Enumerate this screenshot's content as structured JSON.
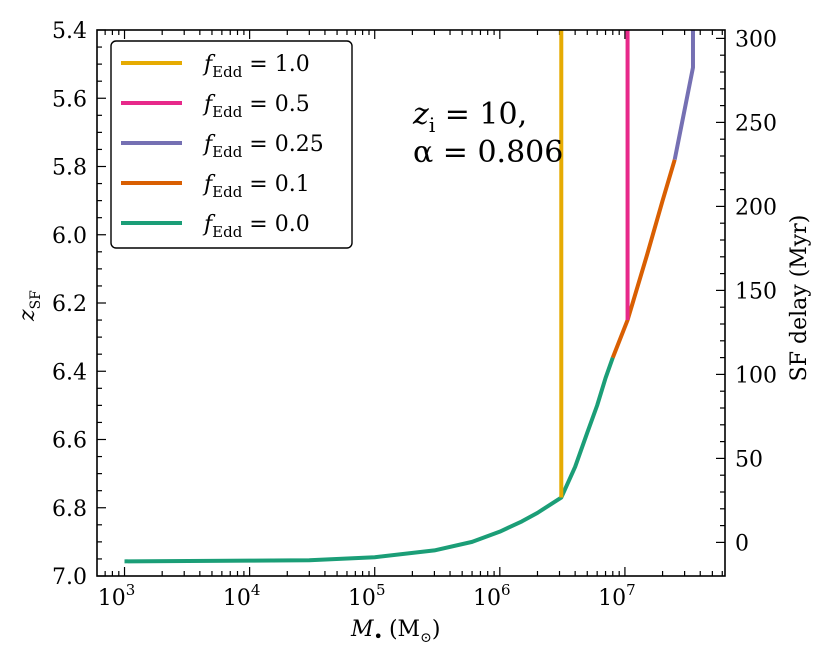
{
  "chart_data": {
    "type": "line",
    "title": "",
    "xlabel_main": "M",
    "xlabel_sub": "•",
    "xlabel_unit": "(M",
    "xlabel_unit_sub": "⊙",
    "xlabel_close": ")",
    "ylabel_main": "z",
    "ylabel_sub": "SF",
    "y2label": "SF delay (Myr)",
    "xscale": "log",
    "xlim_log10": [
      2.78,
      7.8
    ],
    "ylim": [
      7.0,
      5.4
    ],
    "y_inverted": true,
    "y2lim": [
      -20.0,
      305.0
    ],
    "x_ticks": [
      {
        "base": "10",
        "exp": "3",
        "log10": 3
      },
      {
        "base": "10",
        "exp": "4",
        "log10": 4
      },
      {
        "base": "10",
        "exp": "5",
        "log10": 5
      },
      {
        "base": "10",
        "exp": "6",
        "log10": 6
      },
      {
        "base": "10",
        "exp": "7",
        "log10": 7
      }
    ],
    "y_ticks": [
      "5.4",
      "5.6",
      "5.8",
      "6.0",
      "6.2",
      "6.4",
      "6.6",
      "6.8",
      "7.0"
    ],
    "y2_ticks": [
      "0",
      "50",
      "100",
      "150",
      "200",
      "250",
      "300"
    ],
    "annotation": {
      "line1_var": "z",
      "line1_sub": "i",
      "line1_rest": " = 10,",
      "line2": "α = 0.806"
    },
    "legend_position": "upper-left",
    "series": [
      {
        "name": "f",
        "name_sub": "Edd",
        "value_text": " = 1.0",
        "color": "#E6AB02",
        "points": [
          [
            3100000.0,
            6.77
          ],
          [
            3100000.0,
            5.4
          ]
        ]
      },
      {
        "name": "f",
        "name_sub": "Edd",
        "value_text": " = 0.5",
        "color": "#E7298A",
        "points": [
          [
            10500000.0,
            6.25
          ],
          [
            10500000.0,
            5.4
          ]
        ]
      },
      {
        "name": "f",
        "name_sub": "Edd",
        "value_text": " = 0.25",
        "color": "#7570B3",
        "points": [
          [
            25000000.0,
            5.78
          ],
          [
            35000000.0,
            5.51
          ],
          [
            35000000.0,
            5.4
          ]
        ]
      },
      {
        "name": "f",
        "name_sub": "Edd",
        "value_text": " = 0.1",
        "color": "#D95F02",
        "points": [
          [
            8000000.0,
            6.36
          ],
          [
            10500000.0,
            6.25
          ],
          [
            15000000.0,
            6.06
          ],
          [
            20000000.0,
            5.9
          ],
          [
            25000000.0,
            5.78
          ]
        ]
      },
      {
        "name": "f",
        "name_sub": "Edd",
        "value_text": " = 0.0",
        "color": "#1B9E77",
        "points": [
          [
            1000.0,
            6.957
          ],
          [
            10000.0,
            6.955
          ],
          [
            30000.0,
            6.954
          ],
          [
            100000.0,
            6.945
          ],
          [
            300000.0,
            6.925
          ],
          [
            600000.0,
            6.9
          ],
          [
            1000000.0,
            6.87
          ],
          [
            1500000.0,
            6.84
          ],
          [
            2000000.0,
            6.815
          ],
          [
            3100000.0,
            6.77
          ],
          [
            4000000.0,
            6.68
          ],
          [
            5000000.0,
            6.58
          ],
          [
            6000000.0,
            6.5
          ],
          [
            7000000.0,
            6.42
          ],
          [
            8000000.0,
            6.36
          ]
        ]
      }
    ]
  }
}
